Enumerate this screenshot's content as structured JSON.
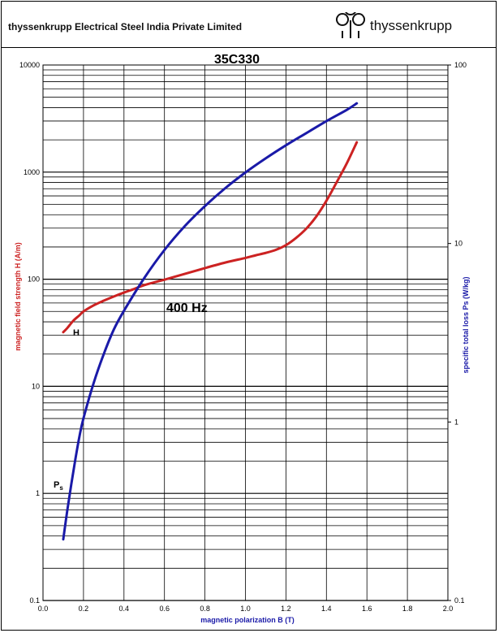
{
  "header": {
    "company": "thyssenkrupp Electrical Steel India Private Limited",
    "logo_text": "thyssenkrupp"
  },
  "colors": {
    "h_curve": "#cc2222",
    "ps_curve": "#1a1aa8",
    "grid": "#000000"
  },
  "chart_data": {
    "type": "line",
    "title": "35C330",
    "xlabel": "magnetic polarization   B (T)",
    "ylabel_left": "magnetic field strength   H  (A/m)",
    "ylabel_right": "specific total loss   Ps (W/kg)",
    "xlim": [
      0,
      2.0
    ],
    "ylim_left": [
      0.1,
      10000
    ],
    "ylim_right": [
      0.1,
      100
    ],
    "yscale": "log",
    "grid": true,
    "x_ticks": [
      "0.0",
      "0.2",
      "0.4",
      "0.6",
      "0.8",
      "1.0",
      "1.2",
      "1.4",
      "1.6",
      "1.8",
      "2.0"
    ],
    "y_left_ticks": [
      "0.1",
      "1",
      "10",
      "100",
      "1000",
      "10000"
    ],
    "y_right_ticks": [
      "0.1",
      "1",
      "10",
      "100"
    ],
    "annotations": {
      "frequency": "400 Hz",
      "h_label": "H",
      "ps_label": "P",
      "ps_sub": "s"
    },
    "series": [
      {
        "name": "H",
        "axis": "left",
        "x": [
          0.1,
          0.12,
          0.15,
          0.18,
          0.2,
          0.25,
          0.3,
          0.35,
          0.4,
          0.45,
          0.5,
          0.6,
          0.7,
          0.8,
          0.9,
          1.0,
          1.05,
          1.1,
          1.15,
          1.2,
          1.25,
          1.3,
          1.35,
          1.4,
          1.45,
          1.5,
          1.55
        ],
        "y": [
          32,
          35,
          41,
          46,
          50,
          57,
          63,
          69,
          75,
          81,
          88,
          99,
          112,
          127,
          143,
          158,
          167,
          176,
          188,
          208,
          243,
          296,
          385,
          540,
          800,
          1200,
          1900
        ]
      },
      {
        "name": "Ps",
        "axis": "right",
        "x": [
          0.1,
          0.12,
          0.14,
          0.16,
          0.18,
          0.2,
          0.25,
          0.3,
          0.35,
          0.4,
          0.5,
          0.6,
          0.7,
          0.8,
          0.9,
          1.0,
          1.1,
          1.2,
          1.3,
          1.4,
          1.5,
          1.55
        ],
        "y": [
          0.22,
          0.32,
          0.45,
          0.62,
          0.83,
          1.05,
          1.65,
          2.4,
          3.3,
          4.2,
          6.4,
          9.2,
          12.5,
          16.2,
          20.4,
          25.0,
          30.0,
          35.5,
          41.5,
          48.5,
          56.0,
          61.0
        ]
      }
    ]
  }
}
